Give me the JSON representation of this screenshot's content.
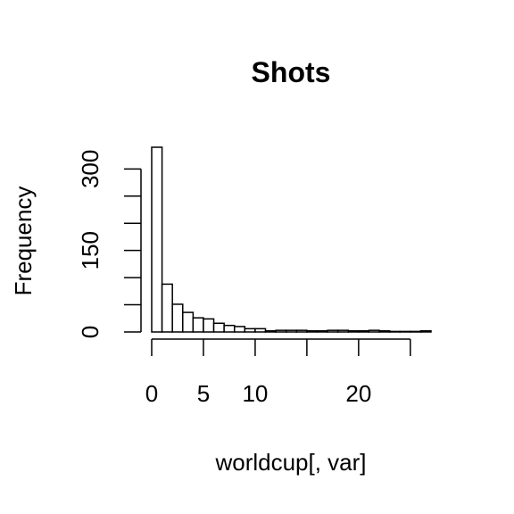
{
  "chart_data": {
    "type": "bar",
    "title": "Shots",
    "xlabel": "worldcup[, var]",
    "ylabel": "Frequency",
    "bin_edges": [
      0,
      1,
      2,
      3,
      4,
      5,
      6,
      7,
      8,
      9,
      10,
      11,
      12,
      13,
      14,
      15,
      16,
      17,
      18,
      19,
      20,
      21,
      22,
      23,
      24,
      25,
      26,
      27
    ],
    "values": [
      340,
      88,
      51,
      36,
      26,
      24,
      16,
      12,
      10,
      6,
      6,
      2,
      3,
      3,
      3,
      2,
      2,
      3,
      3,
      2,
      2,
      3,
      2,
      1,
      1,
      1,
      2
    ],
    "xlim": [
      0,
      27
    ],
    "ylim": [
      0,
      340
    ],
    "x_ticks": [
      0,
      5,
      10,
      15,
      20,
      25
    ],
    "x_tick_labels": [
      "0",
      "5",
      "10",
      "",
      "20",
      ""
    ],
    "y_ticks": [
      0,
      50,
      100,
      150,
      200,
      250,
      300
    ],
    "y_tick_labels": [
      "0",
      "",
      "",
      "150",
      "",
      "",
      "300"
    ],
    "grid": false,
    "legend": "none",
    "bar_fill": "#ffffff",
    "bar_stroke": "#000000"
  }
}
